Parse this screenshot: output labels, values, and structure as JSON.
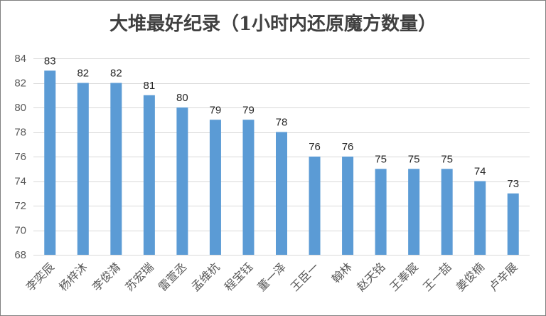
{
  "chart_data": {
    "type": "bar",
    "title": "大堆最好纪录（1小时内还原魔方数量）",
    "xlabel": "",
    "ylabel": "",
    "categories": [
      "李奕辰",
      "杨梓沐",
      "李俊潸",
      "苏宏瑞",
      "雷萱丞",
      "孟维杭",
      "程宝钰",
      "董一泽",
      "王臣一",
      "翰林",
      "赵天铭",
      "王奉宸",
      "王一喆",
      "姜俊楠",
      "卢辛展"
    ],
    "values": [
      83,
      82,
      82,
      81,
      80,
      79,
      79,
      78,
      76,
      76,
      75,
      75,
      75,
      74,
      73
    ],
    "ylim": [
      68,
      84
    ],
    "yticks": [
      68,
      70,
      72,
      74,
      76,
      78,
      80,
      82,
      84
    ],
    "grid": true,
    "legend": "none",
    "bar_color": "#5b9bd5",
    "grid_color": "#d9d9d9"
  }
}
